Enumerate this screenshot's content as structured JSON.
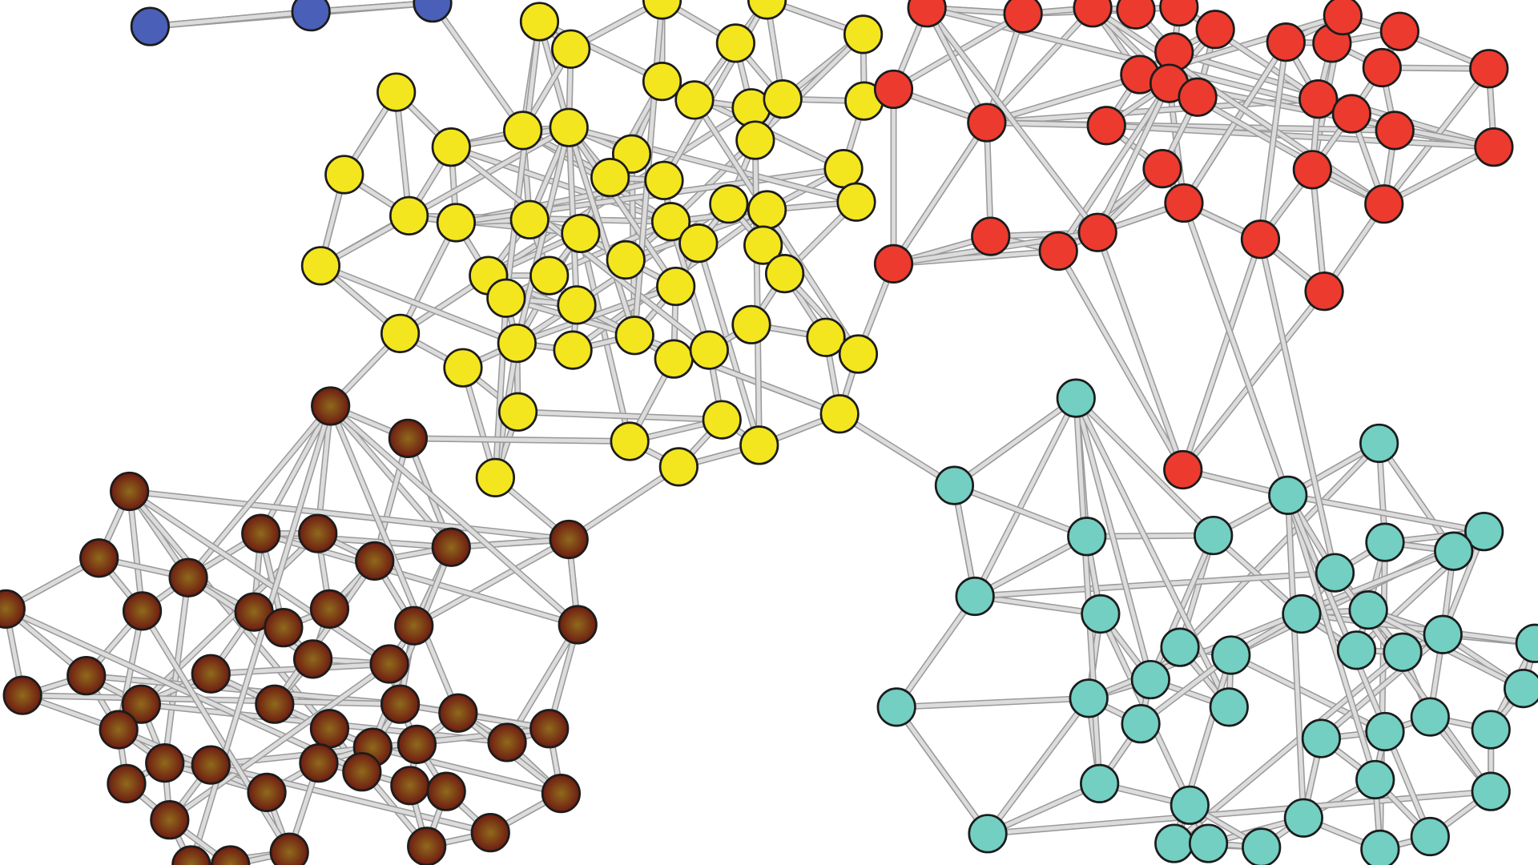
{
  "diagram": {
    "type": "network-graph",
    "clusters": [
      {
        "id": "blue",
        "color": "#4a5fb8"
      },
      {
        "id": "yellow",
        "color": "#f3e61e"
      },
      {
        "id": "red",
        "color": "#ec3a2f"
      },
      {
        "id": "teal",
        "color": "#72cfc2"
      },
      {
        "id": "brown",
        "color": "#7a2412",
        "highlight": "#8f6a1c"
      }
    ],
    "edge_color": "#d4d4d4",
    "node_outline_color": "#1c1c1c",
    "background": "#ffffff"
  }
}
